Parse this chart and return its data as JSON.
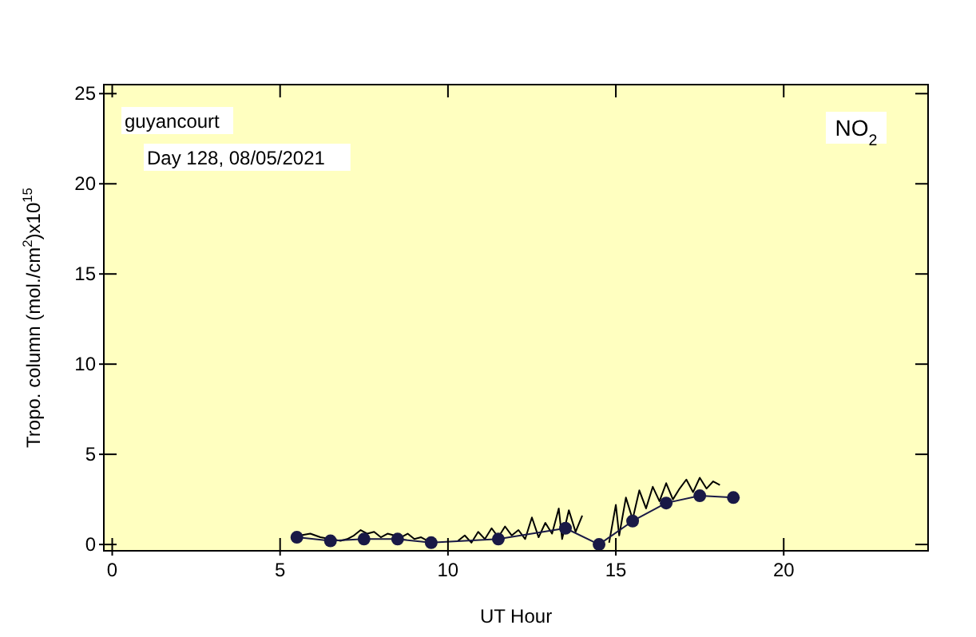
{
  "chart_data": {
    "type": "line",
    "title": "NO$_{2}$",
    "xlabel": "UT Hour",
    "ylabel": "Tropo. column (mol./cm$^{2}$)x10$^{15}$",
    "annotations": [
      "guyancourt",
      "Day 128, 08/05/2021"
    ],
    "xlim": [
      -0.25,
      24.3
    ],
    "ylim": [
      -0.35,
      25.5
    ],
    "xticks": [
      0,
      5,
      10,
      15,
      20
    ],
    "yticks": [
      0,
      5,
      10,
      15,
      20,
      25
    ],
    "series": [
      {
        "color": "#000000",
        "marker": "none",
        "x": [
          5.6,
          5.9,
          6.2,
          6.5,
          6.8,
          7.0,
          7.2,
          7.4,
          7.6,
          7.8,
          8.0,
          8.2,
          8.4,
          8.6,
          8.8,
          9.0,
          9.2,
          9.4,
          9.5,
          null,
          10.3,
          10.5,
          10.7,
          10.9,
          11.1,
          11.3,
          11.5,
          11.7,
          11.9,
          12.1,
          12.3,
          12.5,
          12.7,
          12.9,
          13.1,
          13.3,
          13.4,
          13.6,
          13.8,
          14.0,
          null,
          14.8,
          15.0,
          15.1,
          15.3,
          15.5,
          15.7,
          15.9,
          16.1,
          16.3,
          16.5,
          16.7,
          16.9,
          17.1,
          17.3,
          17.5,
          17.7,
          17.9,
          18.1
        ],
        "values": [
          0.5,
          0.6,
          0.4,
          0.3,
          0.2,
          0.3,
          0.5,
          0.8,
          0.6,
          0.7,
          0.4,
          0.6,
          0.5,
          0.4,
          0.6,
          0.3,
          0.4,
          0.2,
          0.1,
          null,
          0.2,
          0.5,
          0.1,
          0.7,
          0.3,
          0.9,
          0.4,
          1.0,
          0.5,
          0.8,
          0.3,
          1.5,
          0.4,
          1.2,
          0.6,
          2.0,
          0.3,
          1.9,
          0.7,
          1.6,
          null,
          0.1,
          2.2,
          0.5,
          2.6,
          1.4,
          3.0,
          2.0,
          3.2,
          2.4,
          3.4,
          2.5,
          3.1,
          3.6,
          2.9,
          3.7,
          3.1,
          3.5,
          3.3
        ]
      },
      {
        "color": "#191946",
        "marker": "circle",
        "x": [
          5.5,
          6.5,
          7.5,
          8.5,
          9.5,
          11.5,
          13.5,
          14.5,
          15.5,
          16.5,
          17.5,
          18.5
        ],
        "values": [
          0.4,
          0.2,
          0.3,
          0.3,
          0.1,
          0.3,
          0.9,
          0.0,
          1.3,
          2.3,
          2.7,
          2.6
        ]
      }
    ]
  }
}
